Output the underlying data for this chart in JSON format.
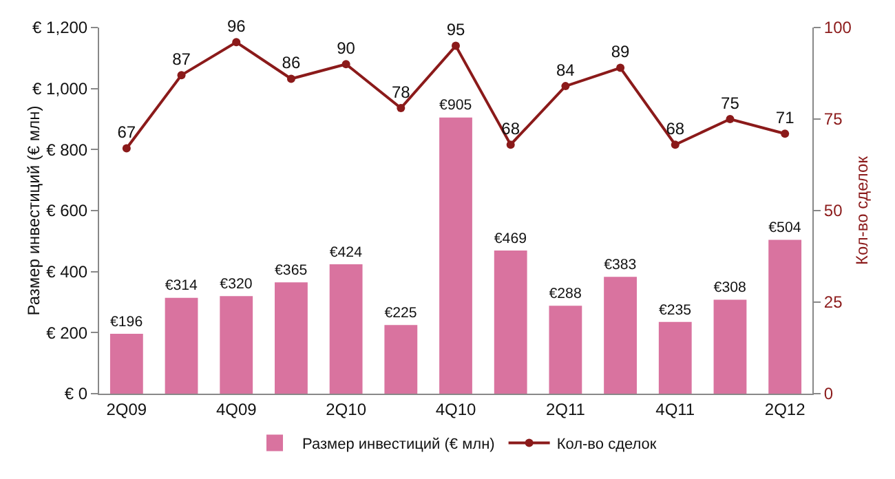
{
  "chart_data": {
    "type": "bar",
    "categories": [
      "2Q09",
      null,
      "4Q09",
      null,
      "2Q10",
      null,
      "4Q10",
      null,
      "2Q11",
      null,
      "4Q11",
      null,
      "2Q12"
    ],
    "ylabel": "Размер инвестиций (€ млн)",
    "y2label": "Кол-во сделок",
    "series": [
      {
        "name": "Размер инвестиций (€ млн)",
        "color": "#d9739f",
        "values": [
          196,
          314,
          320,
          365,
          424,
          225,
          905,
          469,
          288,
          383,
          235,
          308,
          504
        ],
        "value_labels": [
          "€196",
          "€314",
          "€320",
          "€365",
          "€424",
          "€225",
          "€905",
          "€469",
          "€288",
          "€383",
          "€235",
          "€308",
          "€504"
        ]
      },
      {
        "name": "Кол-во сделок",
        "type": "line",
        "axis": "y2",
        "color": "#8b1a1a",
        "marker": "circle",
        "values": [
          67,
          87,
          96,
          86,
          90,
          78,
          95,
          68,
          84,
          89,
          68,
          75,
          71
        ],
        "value_labels": [
          "67",
          "87",
          "96",
          "86",
          "90",
          "78",
          "95",
          "68",
          "84",
          "89",
          "68",
          "75",
          "71"
        ]
      }
    ],
    "ylim": [
      0,
      1200
    ],
    "yticks": [
      {
        "value": 0,
        "label": "€ 0"
      },
      {
        "value": 200,
        "label": "€ 200"
      },
      {
        "value": 400,
        "label": "€ 400"
      },
      {
        "value": 600,
        "label": "€ 600"
      },
      {
        "value": 800,
        "label": "€ 800"
      },
      {
        "value": 1000,
        "label": "€ 1,000"
      },
      {
        "value": 1200,
        "label": "€ 1,200"
      }
    ],
    "y2lim": [
      0,
      100
    ],
    "y2ticks": [
      0,
      25,
      50,
      75,
      100
    ],
    "legend": "bottom",
    "grid": false
  }
}
